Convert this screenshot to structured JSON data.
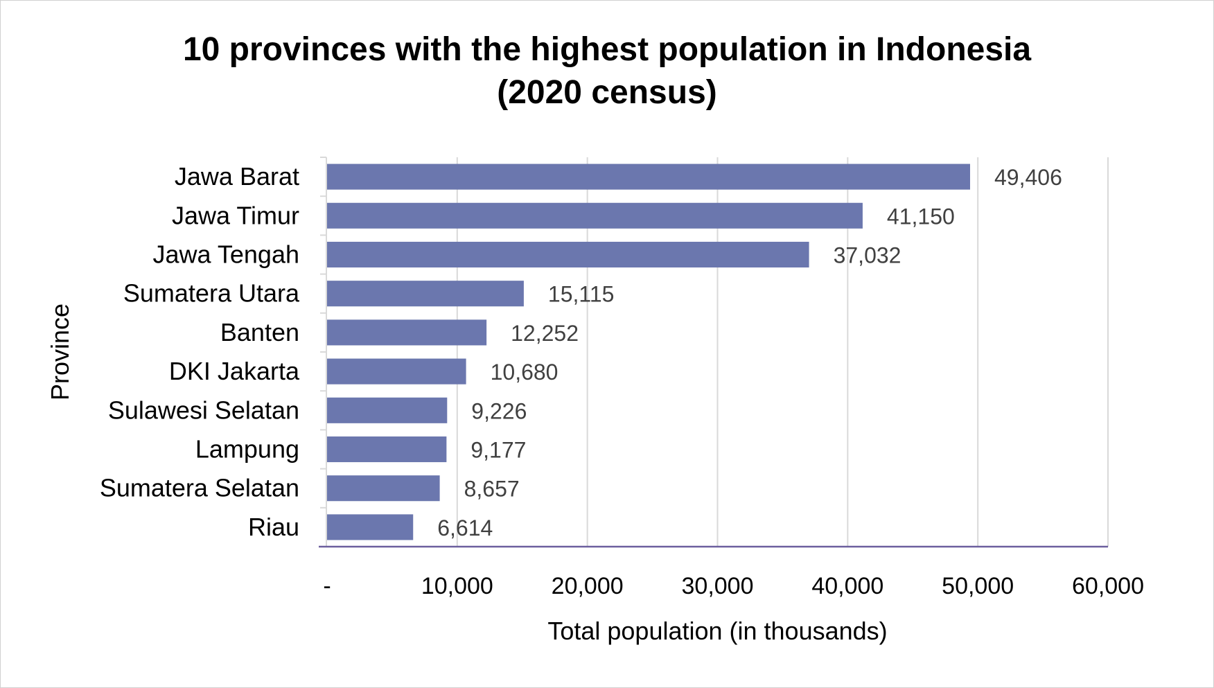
{
  "chart_data": {
    "type": "bar",
    "orientation": "horizontal",
    "title_lines": [
      "10 provinces with the highest population in Indonesia",
      "(2020 census)"
    ],
    "xlabel": "Total population (in thousands)",
    "ylabel": "Province",
    "categories": [
      "Jawa Barat",
      "Jawa Timur",
      "Jawa Tengah",
      "Sumatera Utara",
      "Banten",
      "DKI Jakarta",
      "Sulawesi Selatan",
      "Lampung",
      "Sumatera Selatan",
      "Riau"
    ],
    "values": [
      49406,
      41150,
      37032,
      15115,
      12252,
      10680,
      9226,
      9177,
      8657,
      6614
    ],
    "data_labels": [
      "49,406",
      "41,150",
      "37,032",
      "15,115",
      "12,252",
      "10,680",
      "9,226",
      "9,177",
      "8,657",
      "6,614"
    ],
    "xlim": [
      0,
      60000
    ],
    "x_ticks": [
      0,
      10000,
      20000,
      30000,
      40000,
      50000,
      60000
    ],
    "x_tick_labels": [
      "-",
      "10,000",
      "20,000",
      "30,000",
      "40,000",
      "50,000",
      "60,000"
    ],
    "grid": "vertical",
    "legend": "none",
    "colors": {
      "bar": "#6b77ae",
      "grid": "#d9d9d9",
      "axis": "#6b5f9e"
    }
  }
}
